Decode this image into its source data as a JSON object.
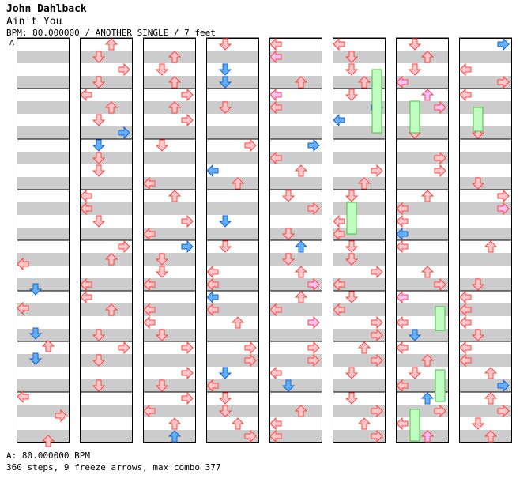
{
  "header": {
    "artist": "John Dahlback",
    "song_title": "Ain't You",
    "meta_line": "BPM: 80.000000 / ANOTHER SINGLE / 7 feet",
    "bpm_marker": "A"
  },
  "footer": {
    "bpm_line": "A: 80.000000 BPM",
    "stats_line": "360 steps, 9 freeze arrows, max combo 377"
  },
  "chart": {
    "columns": 8,
    "measures_per_column": 8,
    "colors": {
      "band_gray": "#cccccc",
      "band_white": "#ffffff",
      "border": "#000000",
      "red_arrow": "#ffc8c8",
      "red_stroke": "#ff4040",
      "blue_arrow": "#60b0ff",
      "blue_stroke": "#2060c0",
      "pink_arrow": "#ffc0ff",
      "yellow_arrow": "#ffff40",
      "freeze": "#c0ffc0",
      "freeze_stroke": "#40c040"
    }
  }
}
